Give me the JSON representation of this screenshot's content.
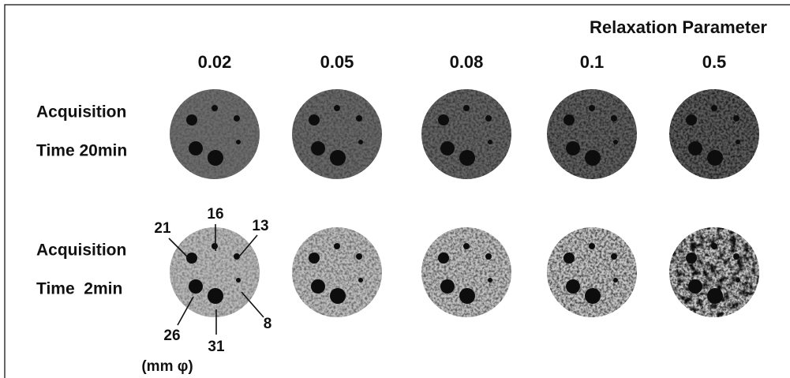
{
  "header": {
    "title": "Relaxation Parameter"
  },
  "columns": [
    "0.02",
    "0.05",
    "0.08",
    "0.1",
    "0.5"
  ],
  "rows": [
    {
      "line1": "Acquisition",
      "line2": "Time 20min"
    },
    {
      "line1": "Acquisition",
      "line2": "Time  2min"
    }
  ],
  "annotations": [
    "21",
    "16",
    "13",
    "26",
    "31",
    "8",
    "(mm φ)"
  ]
}
